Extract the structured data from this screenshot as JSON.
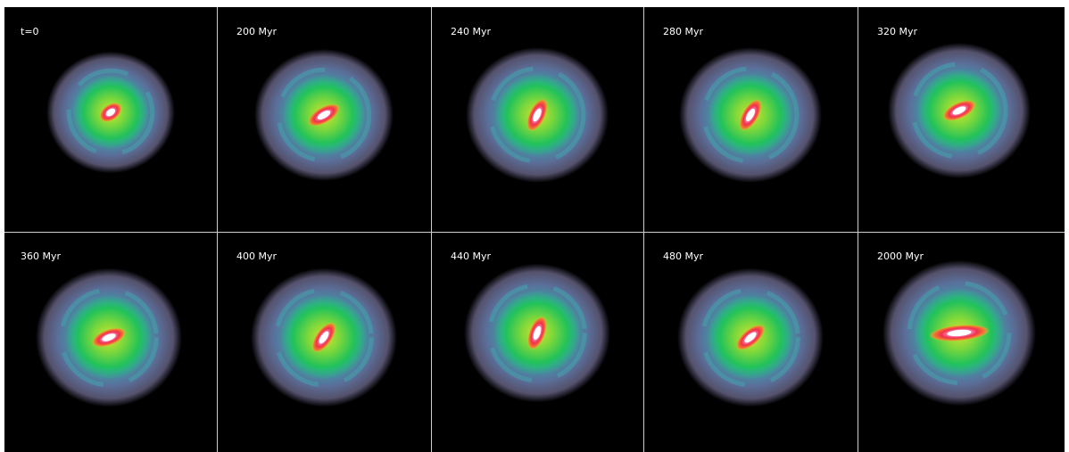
{
  "panels": [
    {
      "label": "t=0"
    },
    {
      "label": "200 Myr"
    },
    {
      "label": "240 Myr"
    },
    {
      "label": "280 Myr"
    },
    {
      "label": "320 Myr"
    },
    {
      "label": "360 Myr"
    },
    {
      "label": "400 Myr"
    },
    {
      "label": "440 Myr"
    },
    {
      "label": "480 Myr"
    },
    {
      "label": "2000 Myr"
    }
  ]
}
